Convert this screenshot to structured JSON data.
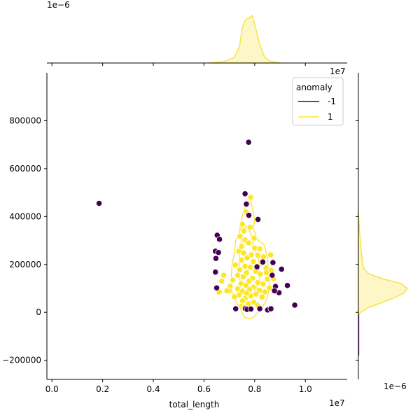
{
  "chart_data": {
    "type": "scatter",
    "title": "",
    "xlabel": "total_length",
    "ylabel": "",
    "x_scale_label": "1e7",
    "y_scale_label": "1e7",
    "top_density_scale_label": "1e−6",
    "right_density_scale_label": "1e−6",
    "xlim": [
      -0.02,
      1.165
    ],
    "ylim": [
      -280000,
      1000000
    ],
    "x_ticks": [
      0.0,
      0.2,
      0.4,
      0.6,
      0.8,
      1.0
    ],
    "x_tick_labels": [
      "0.0",
      "0.2",
      "0.4",
      "0.6",
      "0.8",
      "1.0"
    ],
    "y_ticks": [
      -200000,
      0,
      200000,
      400000,
      600000,
      800000
    ],
    "y_tick_labels": [
      "−200000",
      "0",
      "200000",
      "400000",
      "600000",
      "800000"
    ],
    "legend": {
      "title": "anomaly",
      "location": "top-right",
      "entries": [
        {
          "label": "-1",
          "color": "#440154"
        },
        {
          "label": "1",
          "color": "#fde725"
        }
      ]
    },
    "colors": {
      "anomaly": "#440154",
      "normal": "#fde725",
      "kde_fill": "#fdf6c6",
      "kde_line": "#f6e231"
    },
    "series": [
      {
        "name": "-1",
        "color": "#440154",
        "points": [
          [
            0.186,
            455000
          ],
          [
            0.776,
            710000
          ],
          [
            0.762,
            495000
          ],
          [
            0.767,
            452000
          ],
          [
            0.777,
            405000
          ],
          [
            0.813,
            388000
          ],
          [
            0.652,
            322000
          ],
          [
            0.661,
            305000
          ],
          [
            0.645,
            255000
          ],
          [
            0.657,
            250000
          ],
          [
            0.647,
            225000
          ],
          [
            0.645,
            168000
          ],
          [
            0.65,
            102000
          ],
          [
            0.872,
            208000
          ],
          [
            0.832,
            210000
          ],
          [
            0.869,
            155000
          ],
          [
            0.906,
            180000
          ],
          [
            0.882,
            108000
          ],
          [
            0.896,
            82000
          ],
          [
            0.878,
            90000
          ],
          [
            0.929,
            112000
          ],
          [
            0.958,
            30000
          ],
          [
            0.725,
            15000
          ],
          [
            0.763,
            15000
          ],
          [
            0.77,
            12000
          ],
          [
            0.785,
            14000
          ],
          [
            0.82,
            15000
          ],
          [
            0.851,
            10000
          ],
          [
            0.864,
            15000
          ],
          [
            0.809,
            190000
          ]
        ]
      },
      {
        "name": "1",
        "color": "#fde725",
        "points": [
          [
            0.784,
            480000
          ],
          [
            0.772,
            455000
          ],
          [
            0.765,
            420000
          ],
          [
            0.751,
            368000
          ],
          [
            0.757,
            340000
          ],
          [
            0.782,
            355000
          ],
          [
            0.742,
            318000
          ],
          [
            0.762,
            302000
          ],
          [
            0.798,
            310000
          ],
          [
            0.776,
            290000
          ],
          [
            0.748,
            275000
          ],
          [
            0.8,
            268000
          ],
          [
            0.82,
            265000
          ],
          [
            0.737,
            255000
          ],
          [
            0.756,
            248000
          ],
          [
            0.787,
            240000
          ],
          [
            0.812,
            238000
          ],
          [
            0.835,
            232000
          ],
          [
            0.77,
            228000
          ],
          [
            0.748,
            218000
          ],
          [
            0.795,
            212000
          ],
          [
            0.828,
            205000
          ],
          [
            0.724,
            198000
          ],
          [
            0.762,
            192000
          ],
          [
            0.783,
            188000
          ],
          [
            0.845,
            185000
          ],
          [
            0.741,
            178000
          ],
          [
            0.804,
            172000
          ],
          [
            0.768,
            165000
          ],
          [
            0.822,
            160000
          ],
          [
            0.733,
            155000
          ],
          [
            0.755,
            148000
          ],
          [
            0.791,
            142000
          ],
          [
            0.85,
            138000
          ],
          [
            0.714,
            135000
          ],
          [
            0.778,
            130000
          ],
          [
            0.812,
            125000
          ],
          [
            0.746,
            120000
          ],
          [
            0.833,
            118000
          ],
          [
            0.766,
            112000
          ],
          [
            0.703,
            108000
          ],
          [
            0.795,
            105000
          ],
          [
            0.858,
            102000
          ],
          [
            0.733,
            98000
          ],
          [
            0.78,
            95000
          ],
          [
            0.819,
            92000
          ],
          [
            0.752,
            88000
          ],
          [
            0.7,
            90000
          ],
          [
            0.69,
            90000
          ],
          [
            0.84,
            85000
          ],
          [
            0.768,
            80000
          ],
          [
            0.805,
            76000
          ],
          [
            0.738,
            72000
          ],
          [
            0.785,
            68000
          ],
          [
            0.829,
            64000
          ],
          [
            0.762,
            58000
          ],
          [
            0.752,
            48000
          ],
          [
            0.797,
            42000
          ],
          [
            0.775,
            35000
          ],
          [
            0.748,
            25000
          ],
          [
            0.812,
            28000
          ],
          [
            0.76,
            20000
          ],
          [
            0.678,
            155000
          ],
          [
            0.67,
            130000
          ],
          [
            0.66,
            85000
          ],
          [
            0.72,
            65000
          ],
          [
            0.874,
            140000
          ],
          [
            0.846,
            165000
          ],
          [
            0.865,
            175000
          ],
          [
            0.863,
            240000
          ]
        ]
      }
    ],
    "kde_top": {
      "x": [
        0.62,
        0.68,
        0.72,
        0.74,
        0.75,
        0.76,
        0.77,
        0.78,
        0.79,
        0.8,
        0.81,
        0.82,
        0.84,
        0.86,
        0.9
      ],
      "density": [
        0.0,
        0.03,
        0.12,
        0.35,
        0.72,
        0.88,
        0.93,
        0.95,
        1.0,
        0.82,
        0.6,
        0.38,
        0.12,
        0.04,
        0.0
      ]
    },
    "kde_right": {
      "y": [
        -10000,
        0,
        20000,
        40000,
        60000,
        80000,
        100000,
        120000,
        140000,
        160000,
        180000,
        200000,
        250000,
        300000,
        350000,
        420000
      ],
      "density": [
        0.0,
        0.05,
        0.2,
        0.48,
        0.72,
        0.93,
        1.0,
        0.88,
        0.5,
        0.22,
        0.12,
        0.09,
        0.06,
        0.04,
        0.02,
        0.0
      ]
    },
    "kde_contour": {
      "outline": [
        [
          0.78,
          478000
        ],
        [
          0.755,
          420000
        ],
        [
          0.745,
          370000
        ],
        [
          0.74,
          330000
        ],
        [
          0.725,
          300000
        ],
        [
          0.718,
          240000
        ],
        [
          0.71,
          190000
        ],
        [
          0.707,
          130000
        ],
        [
          0.712,
          80000
        ],
        [
          0.73,
          40000
        ],
        [
          0.75,
          0
        ],
        [
          0.76,
          -20000
        ],
        [
          0.78,
          -28000
        ],
        [
          0.8,
          -15000
        ],
        [
          0.83,
          20000
        ],
        [
          0.85,
          60000
        ],
        [
          0.86,
          120000
        ],
        [
          0.855,
          170000
        ],
        [
          0.85,
          230000
        ],
        [
          0.838,
          280000
        ],
        [
          0.81,
          305000
        ],
        [
          0.795,
          350000
        ],
        [
          0.8,
          390000
        ],
        [
          0.79,
          440000
        ]
      ],
      "inner": [
        [
          0.765,
          360000
        ],
        [
          0.748,
          300000
        ],
        [
          0.74,
          250000
        ],
        [
          0.738,
          180000
        ],
        [
          0.745,
          100000
        ],
        [
          0.77,
          60000
        ],
        [
          0.8,
          80000
        ],
        [
          0.82,
          140000
        ],
        [
          0.815,
          220000
        ],
        [
          0.795,
          280000
        ],
        [
          0.785,
          330000
        ]
      ]
    }
  }
}
